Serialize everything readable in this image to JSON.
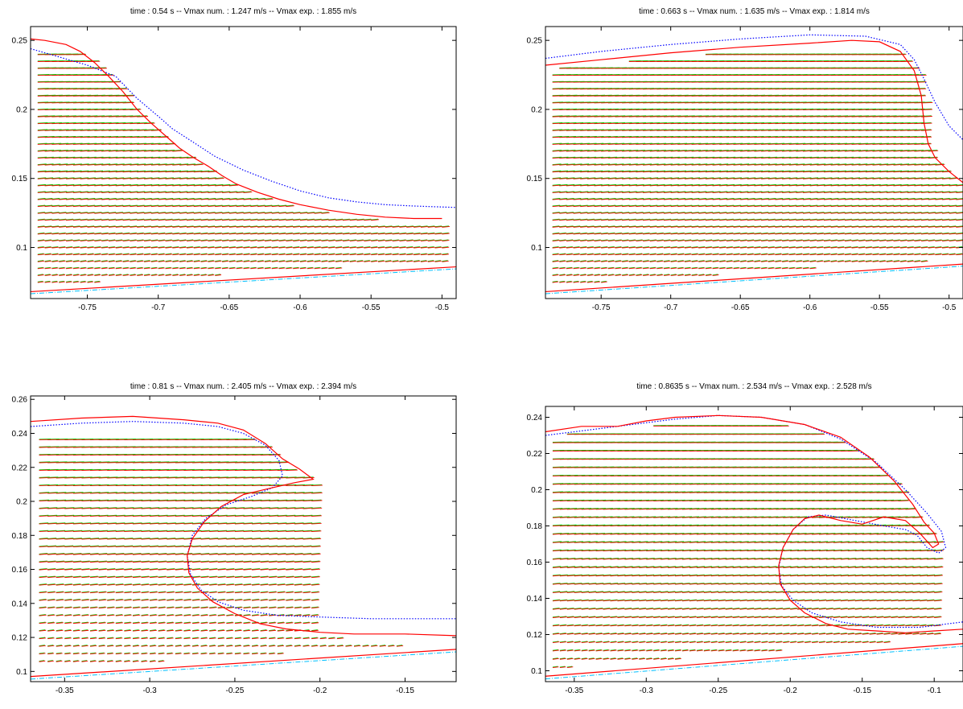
{
  "chart_data": [
    {
      "type": "vector_field",
      "title": "time : 0.54 s -- Vmax num. : 1.247 m/s -- Vmax exp. : 1.855 m/s",
      "xlim": [
        -0.79,
        -0.49
      ],
      "ylim": [
        0.063,
        0.26
      ],
      "xticks": [
        "-0.75",
        "-0.7",
        "-0.65",
        "-0.6",
        "-0.55",
        "-0.5"
      ],
      "yticks": [
        "0.25",
        "0.2",
        "0.15",
        "0.1"
      ],
      "colors": {
        "numerical": "#ff0000",
        "experimental": "#00cc00",
        "interface_dotted": "#0000ff",
        "bottom_dashdot": "#00bfff"
      },
      "surface_num": [
        [
          -0.79,
          0.251
        ],
        [
          -0.78,
          0.25
        ],
        [
          -0.765,
          0.247
        ],
        [
          -0.755,
          0.242
        ],
        [
          -0.745,
          0.234
        ],
        [
          -0.735,
          0.224
        ],
        [
          -0.725,
          0.213
        ],
        [
          -0.715,
          0.2
        ],
        [
          -0.705,
          0.19
        ],
        [
          -0.695,
          0.181
        ],
        [
          -0.685,
          0.172
        ],
        [
          -0.675,
          0.165
        ],
        [
          -0.665,
          0.159
        ],
        [
          -0.655,
          0.152
        ],
        [
          -0.645,
          0.146
        ],
        [
          -0.63,
          0.14
        ],
        [
          -0.615,
          0.135
        ],
        [
          -0.6,
          0.131
        ],
        [
          -0.58,
          0.127
        ],
        [
          -0.56,
          0.124
        ],
        [
          -0.54,
          0.122
        ],
        [
          -0.52,
          0.121
        ],
        [
          -0.5,
          0.121
        ]
      ],
      "surface_exp": [
        [
          -0.79,
          0.244
        ],
        [
          -0.77,
          0.238
        ],
        [
          -0.75,
          0.232
        ],
        [
          -0.73,
          0.224
        ],
        [
          -0.715,
          0.208
        ],
        [
          -0.7,
          0.195
        ],
        [
          -0.69,
          0.186
        ],
        [
          -0.675,
          0.176
        ],
        [
          -0.66,
          0.166
        ],
        [
          -0.64,
          0.156
        ],
        [
          -0.62,
          0.148
        ],
        [
          -0.6,
          0.141
        ],
        [
          -0.58,
          0.136
        ],
        [
          -0.56,
          0.133
        ],
        [
          -0.54,
          0.131
        ],
        [
          -0.52,
          0.13
        ],
        [
          -0.49,
          0.129
        ]
      ],
      "bottom": [
        [
          -0.79,
          0.068
        ],
        [
          -0.49,
          0.086
        ]
      ],
      "field": {
        "x0": -0.785,
        "dx": 0.005,
        "ny": 34,
        "y0": 0.075,
        "dy": 0.005
      }
    },
    {
      "type": "vector_field",
      "title": "time : 0.663 s -- Vmax num. : 1.635 m/s -- Vmax exp. : 1.814 m/s",
      "xlim": [
        -0.79,
        -0.49
      ],
      "ylim": [
        0.063,
        0.26
      ],
      "xticks": [
        "-0.75",
        "-0.7",
        "-0.65",
        "-0.6",
        "-0.55",
        "-0.5"
      ],
      "yticks": [
        "0.25",
        "0.2",
        "0.15",
        "0.1"
      ],
      "colors": {
        "numerical": "#ff0000",
        "experimental": "#00cc00",
        "interface_dotted": "#0000ff",
        "bottom_dashdot": "#00bfff"
      },
      "surface_num": [
        [
          -0.79,
          0.232
        ],
        [
          -0.75,
          0.236
        ],
        [
          -0.7,
          0.241
        ],
        [
          -0.65,
          0.245
        ],
        [
          -0.6,
          0.248
        ],
        [
          -0.57,
          0.25
        ],
        [
          -0.55,
          0.249
        ],
        [
          -0.535,
          0.242
        ],
        [
          -0.525,
          0.228
        ],
        [
          -0.52,
          0.21
        ],
        [
          -0.518,
          0.19
        ],
        [
          -0.515,
          0.175
        ],
        [
          -0.51,
          0.165
        ],
        [
          -0.5,
          0.155
        ],
        [
          -0.49,
          0.147
        ]
      ],
      "surface_exp": [
        [
          -0.79,
          0.237
        ],
        [
          -0.75,
          0.242
        ],
        [
          -0.7,
          0.247
        ],
        [
          -0.65,
          0.251
        ],
        [
          -0.6,
          0.254
        ],
        [
          -0.56,
          0.253
        ],
        [
          -0.535,
          0.247
        ],
        [
          -0.525,
          0.236
        ],
        [
          -0.518,
          0.222
        ],
        [
          -0.51,
          0.205
        ],
        [
          -0.5,
          0.188
        ],
        [
          -0.49,
          0.178
        ]
      ],
      "bottom": [
        [
          -0.79,
          0.068
        ],
        [
          -0.49,
          0.088
        ]
      ],
      "field": {
        "x0": -0.785,
        "dx": 0.005,
        "ny": 34,
        "y0": 0.075,
        "dy": 0.005
      }
    },
    {
      "type": "vector_field",
      "title": "time : 0.81 s -- Vmax num. : 2.405 m/s -- Vmax exp. : 2.394 m/s",
      "xlim": [
        -0.37,
        -0.12
      ],
      "ylim": [
        0.094,
        0.262
      ],
      "xticks": [
        "-0.35",
        "-0.3",
        "-0.25",
        "-0.2",
        "-0.15"
      ],
      "yticks": [
        "0.26",
        "0.24",
        "0.22",
        "0.2",
        "0.18",
        "0.16",
        "0.14",
        "0.12",
        "0.1"
      ],
      "colors": {
        "numerical": "#ff0000",
        "experimental": "#00cc00",
        "interface_dotted": "#0000ff",
        "bottom_dashdot": "#00bfff"
      },
      "surface_num": [
        [
          -0.37,
          0.247
        ],
        [
          -0.34,
          0.249
        ],
        [
          -0.31,
          0.25
        ],
        [
          -0.28,
          0.248
        ],
        [
          -0.26,
          0.246
        ],
        [
          -0.245,
          0.242
        ],
        [
          -0.232,
          0.234
        ],
        [
          -0.222,
          0.225
        ],
        [
          -0.212,
          0.219
        ],
        [
          -0.204,
          0.213
        ],
        [
          -0.215,
          0.211
        ],
        [
          -0.228,
          0.208
        ],
        [
          -0.245,
          0.204
        ],
        [
          -0.258,
          0.197
        ],
        [
          -0.268,
          0.188
        ],
        [
          -0.275,
          0.178
        ],
        [
          -0.278,
          0.168
        ],
        [
          -0.277,
          0.158
        ],
        [
          -0.272,
          0.149
        ],
        [
          -0.263,
          0.141
        ],
        [
          -0.25,
          0.134
        ],
        [
          -0.235,
          0.128
        ],
        [
          -0.22,
          0.125
        ],
        [
          -0.2,
          0.123
        ],
        [
          -0.18,
          0.122
        ],
        [
          -0.15,
          0.122
        ],
        [
          -0.12,
          0.121
        ]
      ],
      "surface_exp": [
        [
          -0.37,
          0.244
        ],
        [
          -0.34,
          0.246
        ],
        [
          -0.31,
          0.247
        ],
        [
          -0.28,
          0.246
        ],
        [
          -0.26,
          0.244
        ],
        [
          -0.245,
          0.24
        ],
        [
          -0.232,
          0.233
        ],
        [
          -0.224,
          0.224
        ],
        [
          -0.222,
          0.215
        ],
        [
          -0.228,
          0.208
        ],
        [
          -0.24,
          0.203
        ],
        [
          -0.255,
          0.198
        ],
        [
          -0.267,
          0.19
        ],
        [
          -0.275,
          0.18
        ],
        [
          -0.278,
          0.168
        ],
        [
          -0.276,
          0.157
        ],
        [
          -0.27,
          0.148
        ],
        [
          -0.26,
          0.141
        ],
        [
          -0.245,
          0.136
        ],
        [
          -0.225,
          0.133
        ],
        [
          -0.2,
          0.132
        ],
        [
          -0.17,
          0.131
        ],
        [
          -0.12,
          0.131
        ]
      ],
      "bottom": [
        [
          -0.37,
          0.097
        ],
        [
          -0.12,
          0.113
        ]
      ],
      "field": {
        "x0": -0.365,
        "dx": 0.005,
        "ny": 30,
        "y0": 0.106,
        "dy": 0.0045
      }
    },
    {
      "type": "vector_field",
      "title": "time : 0.8635 s -- Vmax num. : 2.534 m/s -- Vmax exp. : 2.528 m/s",
      "xlim": [
        -0.37,
        -0.08
      ],
      "ylim": [
        0.094,
        0.246
      ],
      "xticks": [
        "-0.35",
        "-0.3",
        "-0.25",
        "-0.2",
        "-0.15",
        "-0.1"
      ],
      "yticks": [
        "0.24",
        "0.22",
        "0.2",
        "0.18",
        "0.16",
        "0.14",
        "0.12",
        "0.1"
      ],
      "colors": {
        "numerical": "#ff0000",
        "experimental": "#00cc00",
        "interface_dotted": "#0000ff",
        "bottom_dashdot": "#00bfff"
      },
      "surface_num": [
        [
          -0.37,
          0.232
        ],
        [
          -0.345,
          0.235
        ],
        [
          -0.32,
          0.235
        ],
        [
          -0.3,
          0.238
        ],
        [
          -0.28,
          0.24
        ],
        [
          -0.25,
          0.241
        ],
        [
          -0.22,
          0.24
        ],
        [
          -0.19,
          0.236
        ],
        [
          -0.165,
          0.229
        ],
        [
          -0.145,
          0.218
        ],
        [
          -0.128,
          0.205
        ],
        [
          -0.115,
          0.192
        ],
        [
          -0.107,
          0.182
        ],
        [
          -0.1,
          0.176
        ],
        [
          -0.097,
          0.17
        ],
        [
          -0.101,
          0.168
        ],
        [
          -0.11,
          0.176
        ],
        [
          -0.12,
          0.183
        ],
        [
          -0.135,
          0.185
        ],
        [
          -0.15,
          0.181
        ],
        [
          -0.165,
          0.183
        ],
        [
          -0.18,
          0.186
        ],
        [
          -0.19,
          0.184
        ],
        [
          -0.198,
          0.178
        ],
        [
          -0.205,
          0.168
        ],
        [
          -0.208,
          0.158
        ],
        [
          -0.207,
          0.148
        ],
        [
          -0.2,
          0.139
        ],
        [
          -0.19,
          0.132
        ],
        [
          -0.175,
          0.126
        ],
        [
          -0.16,
          0.123
        ],
        [
          -0.14,
          0.122
        ],
        [
          -0.12,
          0.121
        ],
        [
          -0.1,
          0.122
        ],
        [
          -0.08,
          0.123
        ]
      ],
      "surface_exp": [
        [
          -0.37,
          0.23
        ],
        [
          -0.34,
          0.233
        ],
        [
          -0.31,
          0.236
        ],
        [
          -0.28,
          0.239
        ],
        [
          -0.25,
          0.241
        ],
        [
          -0.22,
          0.24
        ],
        [
          -0.19,
          0.236
        ],
        [
          -0.165,
          0.228
        ],
        [
          -0.14,
          0.215
        ],
        [
          -0.12,
          0.2
        ],
        [
          -0.105,
          0.187
        ],
        [
          -0.095,
          0.177
        ],
        [
          -0.092,
          0.168
        ],
        [
          -0.097,
          0.165
        ],
        [
          -0.105,
          0.168
        ],
        [
          -0.112,
          0.175
        ],
        [
          -0.12,
          0.178
        ],
        [
          -0.135,
          0.18
        ],
        [
          -0.155,
          0.183
        ],
        [
          -0.175,
          0.186
        ],
        [
          -0.188,
          0.185
        ],
        [
          -0.198,
          0.178
        ],
        [
          -0.205,
          0.168
        ],
        [
          -0.208,
          0.157
        ],
        [
          -0.206,
          0.147
        ],
        [
          -0.198,
          0.139
        ],
        [
          -0.185,
          0.132
        ],
        [
          -0.165,
          0.127
        ],
        [
          -0.14,
          0.124
        ],
        [
          -0.11,
          0.124
        ],
        [
          -0.08,
          0.127
        ]
      ],
      "bottom": [
        [
          -0.37,
          0.097
        ],
        [
          -0.08,
          0.115
        ]
      ],
      "field": {
        "x0": -0.365,
        "dx": 0.005,
        "ny": 30,
        "y0": 0.102,
        "dy": 0.0046
      }
    }
  ]
}
